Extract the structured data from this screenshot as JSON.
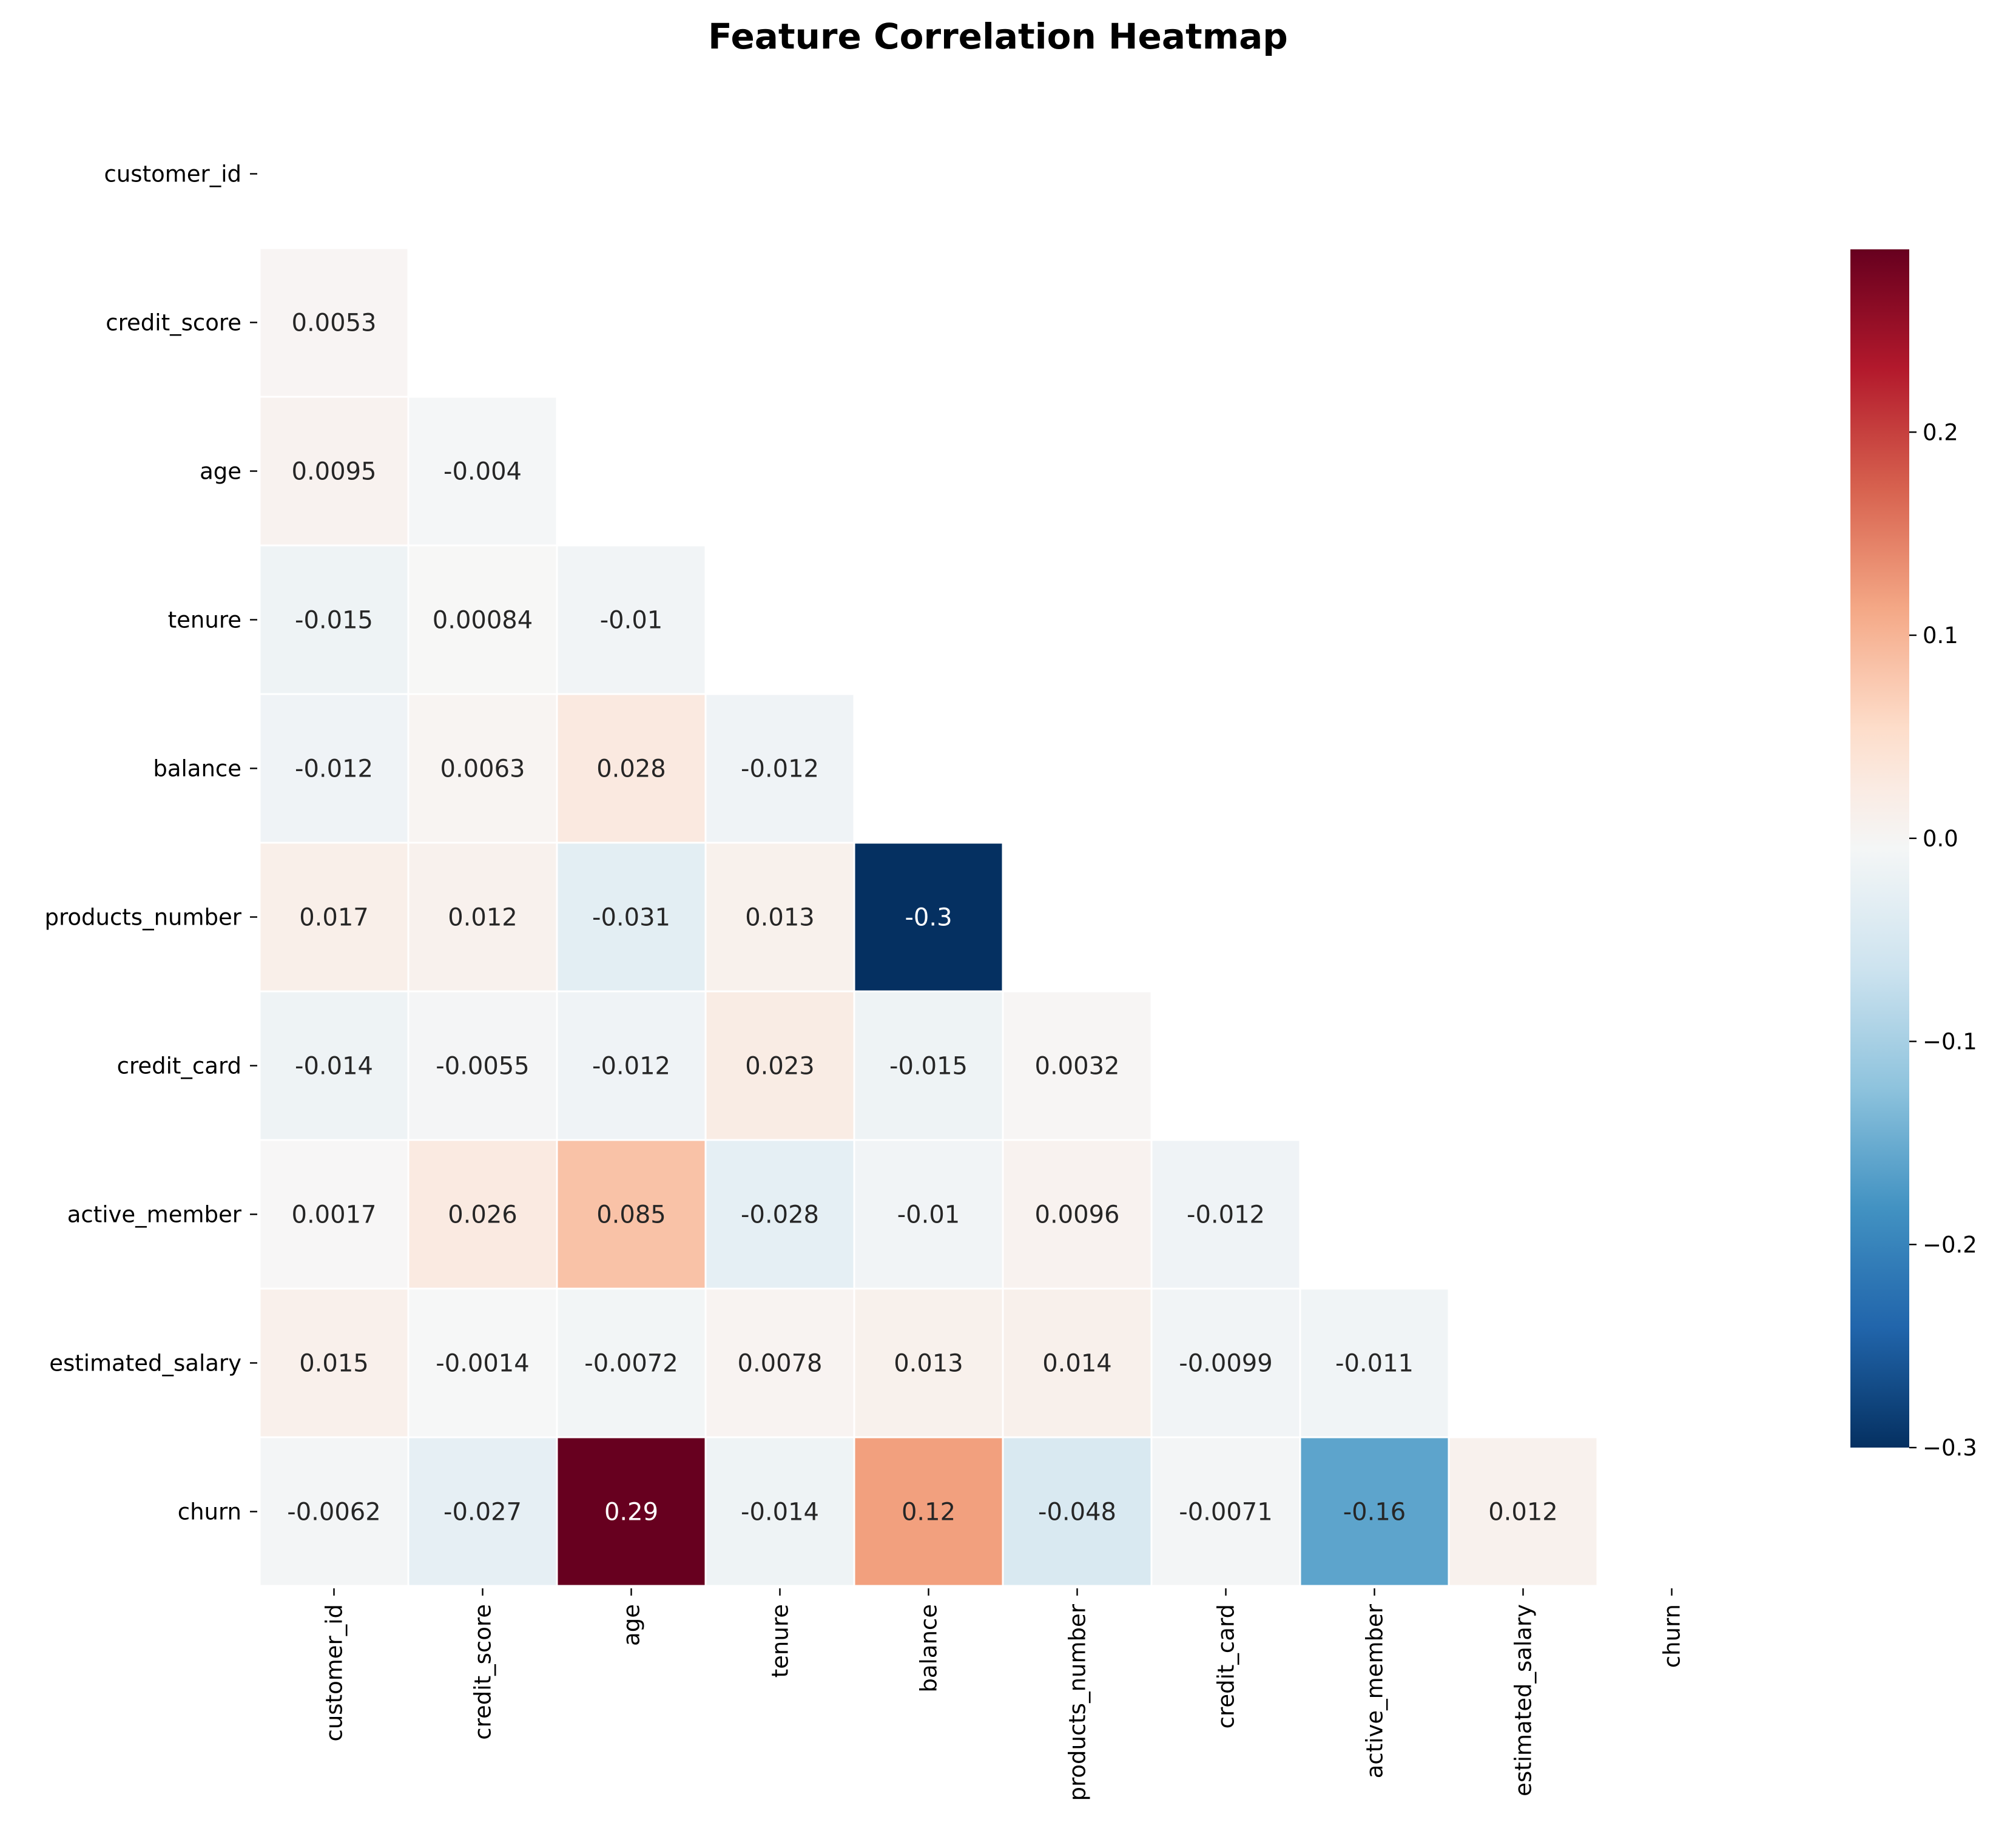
{
  "chart_data": {
    "type": "heatmap",
    "title": "Feature Correlation Heatmap",
    "xlabel": "",
    "ylabel": "",
    "variables": [
      "customer_id",
      "credit_score",
      "age",
      "tenure",
      "balance",
      "products_number",
      "credit_card",
      "active_member",
      "estimated_salary",
      "churn"
    ],
    "mask": "upper-triangle-including-diagonal",
    "cells": [
      {
        "row": "credit_score",
        "col": "customer_id",
        "value": 0.0053,
        "label": "0.0053"
      },
      {
        "row": "age",
        "col": "customer_id",
        "value": 0.0095,
        "label": "0.0095"
      },
      {
        "row": "age",
        "col": "credit_score",
        "value": -0.004,
        "label": "-0.004"
      },
      {
        "row": "tenure",
        "col": "customer_id",
        "value": -0.015,
        "label": "-0.015"
      },
      {
        "row": "tenure",
        "col": "credit_score",
        "value": 0.00084,
        "label": "0.00084"
      },
      {
        "row": "tenure",
        "col": "age",
        "value": -0.01,
        "label": "-0.01"
      },
      {
        "row": "balance",
        "col": "customer_id",
        "value": -0.012,
        "label": "-0.012"
      },
      {
        "row": "balance",
        "col": "credit_score",
        "value": 0.0063,
        "label": "0.0063"
      },
      {
        "row": "balance",
        "col": "age",
        "value": 0.028,
        "label": "0.028"
      },
      {
        "row": "balance",
        "col": "tenure",
        "value": -0.012,
        "label": "-0.012"
      },
      {
        "row": "products_number",
        "col": "customer_id",
        "value": 0.017,
        "label": "0.017"
      },
      {
        "row": "products_number",
        "col": "credit_score",
        "value": 0.012,
        "label": "0.012"
      },
      {
        "row": "products_number",
        "col": "age",
        "value": -0.031,
        "label": "-0.031"
      },
      {
        "row": "products_number",
        "col": "tenure",
        "value": 0.013,
        "label": "0.013"
      },
      {
        "row": "products_number",
        "col": "balance",
        "value": -0.3,
        "label": "-0.3"
      },
      {
        "row": "credit_card",
        "col": "customer_id",
        "value": -0.014,
        "label": "-0.014"
      },
      {
        "row": "credit_card",
        "col": "credit_score",
        "value": -0.0055,
        "label": "-0.0055"
      },
      {
        "row": "credit_card",
        "col": "age",
        "value": -0.012,
        "label": "-0.012"
      },
      {
        "row": "credit_card",
        "col": "tenure",
        "value": 0.023,
        "label": "0.023"
      },
      {
        "row": "credit_card",
        "col": "balance",
        "value": -0.015,
        "label": "-0.015"
      },
      {
        "row": "credit_card",
        "col": "products_number",
        "value": 0.0032,
        "label": "0.0032"
      },
      {
        "row": "active_member",
        "col": "customer_id",
        "value": 0.0017,
        "label": "0.0017"
      },
      {
        "row": "active_member",
        "col": "credit_score",
        "value": 0.026,
        "label": "0.026"
      },
      {
        "row": "active_member",
        "col": "age",
        "value": 0.085,
        "label": "0.085"
      },
      {
        "row": "active_member",
        "col": "tenure",
        "value": -0.028,
        "label": "-0.028"
      },
      {
        "row": "active_member",
        "col": "balance",
        "value": -0.01,
        "label": "-0.01"
      },
      {
        "row": "active_member",
        "col": "products_number",
        "value": 0.0096,
        "label": "0.0096"
      },
      {
        "row": "active_member",
        "col": "credit_card",
        "value": -0.012,
        "label": "-0.012"
      },
      {
        "row": "estimated_salary",
        "col": "customer_id",
        "value": 0.015,
        "label": "0.015"
      },
      {
        "row": "estimated_salary",
        "col": "credit_score",
        "value": -0.0014,
        "label": "-0.0014"
      },
      {
        "row": "estimated_salary",
        "col": "age",
        "value": -0.0072,
        "label": "-0.0072"
      },
      {
        "row": "estimated_salary",
        "col": "tenure",
        "value": 0.0078,
        "label": "0.0078"
      },
      {
        "row": "estimated_salary",
        "col": "balance",
        "value": 0.013,
        "label": "0.013"
      },
      {
        "row": "estimated_salary",
        "col": "products_number",
        "value": 0.014,
        "label": "0.014"
      },
      {
        "row": "estimated_salary",
        "col": "credit_card",
        "value": -0.0099,
        "label": "-0.0099"
      },
      {
        "row": "estimated_salary",
        "col": "active_member",
        "value": -0.011,
        "label": "-0.011"
      },
      {
        "row": "churn",
        "col": "customer_id",
        "value": -0.0062,
        "label": "-0.0062"
      },
      {
        "row": "churn",
        "col": "credit_score",
        "value": -0.027,
        "label": "-0.027"
      },
      {
        "row": "churn",
        "col": "age",
        "value": 0.29,
        "label": "0.29"
      },
      {
        "row": "churn",
        "col": "tenure",
        "value": -0.014,
        "label": "-0.014"
      },
      {
        "row": "churn",
        "col": "balance",
        "value": 0.12,
        "label": "0.12"
      },
      {
        "row": "churn",
        "col": "products_number",
        "value": -0.048,
        "label": "-0.048"
      },
      {
        "row": "churn",
        "col": "credit_card",
        "value": -0.0071,
        "label": "-0.0071"
      },
      {
        "row": "churn",
        "col": "active_member",
        "value": -0.16,
        "label": "-0.16"
      },
      {
        "row": "churn",
        "col": "estimated_salary",
        "value": 0.012,
        "label": "0.012"
      }
    ],
    "colorbar": {
      "colormap": "RdBu_r",
      "range": [
        -0.3,
        0.29
      ],
      "ticks": [
        0.2,
        0.1,
        0.0,
        -0.1,
        -0.2,
        -0.3
      ],
      "tick_labels": [
        "0.2",
        "0.1",
        "0.0",
        "−0.1",
        "−0.2",
        "−0.3"
      ],
      "placement": "right"
    },
    "grid": false,
    "legend": "none"
  }
}
